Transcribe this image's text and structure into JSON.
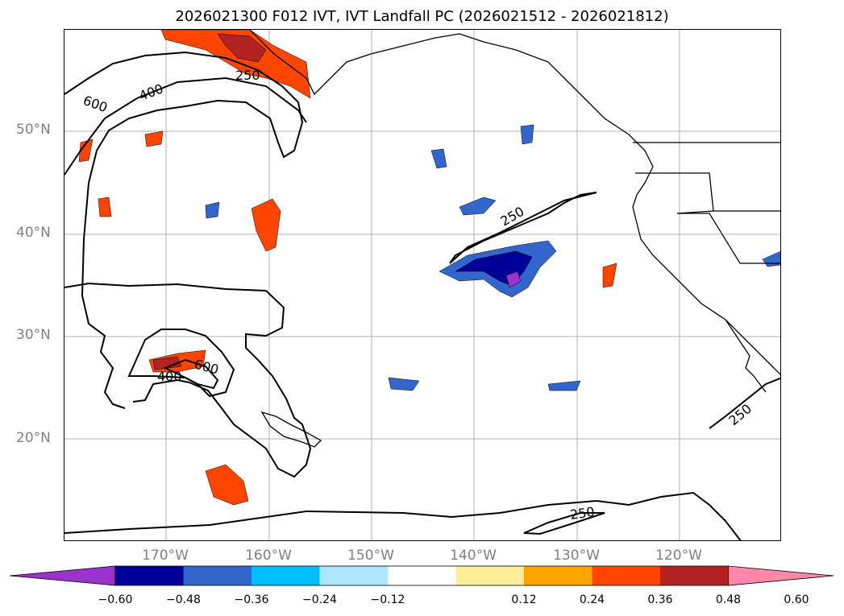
{
  "title": "2026021300 F012 IVT, IVT Landfall PC (2026021512 - 2026021812)",
  "map": {
    "lat_labels": [
      "50°N",
      "40°N",
      "30°N",
      "20°N"
    ],
    "lon_labels": [
      "170°W",
      "160°W",
      "150°W",
      "140°W",
      "130°W",
      "120°W"
    ],
    "contour_labels": [
      "600",
      "400",
      "250",
      "600",
      "400",
      "250",
      "250",
      "250"
    ],
    "contour_color": "#000000",
    "gridline_color": "#b0b0b0"
  },
  "colorbar": {
    "ticks": [
      "−0.60",
      "−0.48",
      "−0.36",
      "−0.24",
      "−0.12",
      "0.12",
      "0.24",
      "0.36",
      "0.48",
      "0.60"
    ],
    "colors": [
      "#9933cc",
      "#000099",
      "#3366cc",
      "#00bfff",
      "#aee6ff",
      "#ffffff",
      "#ffee99",
      "#ffa500",
      "#ff4500",
      "#b22222",
      "#ff88aa"
    ]
  }
}
